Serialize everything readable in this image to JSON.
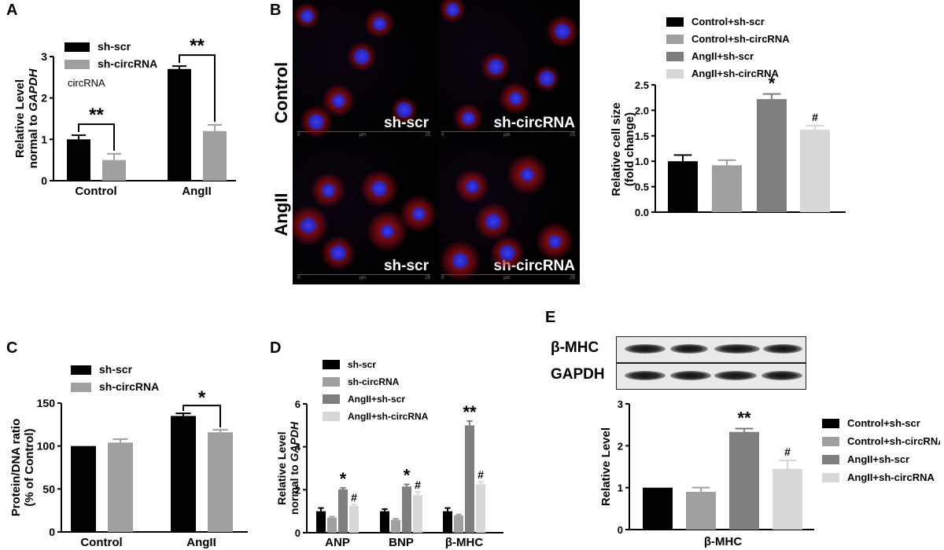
{
  "panel_letters": {
    "a": "A",
    "b": "B",
    "c": "C",
    "d": "D",
    "e": "E"
  },
  "colors": {
    "black": "#000000",
    "gray": "#a0a0a3",
    "dark_gray": "#7e7e7e",
    "light_gray": "#d7d7d7"
  },
  "micrograph": {
    "row_labels": {
      "control": "Control",
      "angii": "AngII"
    },
    "quadrant_labels": {
      "tl": "sh-scr",
      "tr": "sh-circRNA",
      "bl": "sh-scr",
      "br": "sh-circRNA"
    },
    "scale_bar": {
      "start": "0",
      "unit": "µm",
      "end": "25"
    }
  },
  "western_blot": {
    "row1_label": "β-MHC",
    "row2_label": "GAPDH"
  },
  "chart_data": [
    {
      "panel": "A",
      "type": "bar",
      "categories": [
        "Control",
        "AngII"
      ],
      "series": [
        {
          "name": "sh-scr",
          "values": [
            1.0,
            2.7
          ],
          "errors": [
            0.1,
            0.07
          ]
        },
        {
          "name": "sh-circRNA",
          "values": [
            0.5,
            1.2
          ],
          "errors": [
            0.15,
            0.15
          ]
        }
      ],
      "ylabel": "Relative Level normal to GAPDH",
      "ylim": [
        0,
        3
      ],
      "yticks": [
        0,
        1,
        2,
        3
      ],
      "legend_note": "circRNA",
      "significance": [
        "**",
        "**"
      ]
    },
    {
      "panel": "B",
      "type": "bar",
      "categories": [
        "Control+sh-scr",
        "Control+sh-circRNA",
        "AngII+sh-scr",
        "AngII+sh-circRNA"
      ],
      "values": [
        1.0,
        0.92,
        2.22,
        1.62
      ],
      "errors": [
        0.12,
        0.1,
        0.1,
        0.08
      ],
      "marks": [
        "",
        "",
        "*",
        "#"
      ],
      "ylabel": "Relative cell size (fold change)",
      "ylim": [
        0,
        2.5
      ],
      "yticks": [
        "0.0",
        "0.5",
        "1.0",
        "1.5",
        "2.0",
        "2.5"
      ]
    },
    {
      "panel": "C",
      "type": "bar",
      "categories": [
        "Control",
        "AngII"
      ],
      "series": [
        {
          "name": "sh-scr",
          "values": [
            100,
            135
          ],
          "errors": [
            0,
            3
          ]
        },
        {
          "name": "sh-circRNA",
          "values": [
            104,
            116
          ],
          "errors": [
            4,
            3
          ]
        }
      ],
      "ylabel": "Protein/DNA ratio (% of Control)",
      "ylim": [
        0,
        150
      ],
      "yticks": [
        0,
        50,
        100,
        150
      ],
      "significance": [
        "*"
      ]
    },
    {
      "panel": "D",
      "type": "bar",
      "categories": [
        "ANP",
        "BNP",
        "β-MHC"
      ],
      "series": [
        {
          "name": "sh-scr",
          "values": [
            1.0,
            1.0,
            1.0
          ],
          "errors": [
            0.15,
            0.1,
            0.15
          ]
        },
        {
          "name": "sh-circRNA",
          "values": [
            0.7,
            0.6,
            0.8
          ],
          "errors": [
            0.05,
            0.05,
            0.05
          ]
        },
        {
          "name": "AngII+sh-scr",
          "values": [
            2.02,
            2.15,
            5.0
          ],
          "errors": [
            0.07,
            0.1,
            0.2
          ]
        },
        {
          "name": "AngII+sh-circRNA",
          "values": [
            1.25,
            1.75,
            2.25
          ],
          "errors": [
            0.07,
            0.15,
            0.12
          ]
        }
      ],
      "marks": {
        "AngII+sh-scr": [
          "*",
          "*",
          "**"
        ],
        "AngII+sh-circRNA": [
          "#",
          "#",
          "#"
        ]
      },
      "ylabel": "Relative Level normal to GAPDH",
      "ylim": [
        0,
        6
      ],
      "yticks": [
        0,
        2,
        4,
        6
      ]
    },
    {
      "panel": "E",
      "type": "bar",
      "categories": [
        "Control+sh-scr",
        "Control+sh-circRNA",
        "AngII+sh-scr",
        "AngII+sh-circRNA"
      ],
      "values": [
        1.0,
        0.9,
        2.33,
        1.45
      ],
      "errors": [
        0,
        0.1,
        0.08,
        0.2
      ],
      "marks": [
        "",
        "",
        "**",
        "#"
      ],
      "xlabel": "β-MHC",
      "ylabel": "Relative Level",
      "ylim": [
        0,
        3
      ],
      "yticks": [
        0,
        1,
        2,
        3
      ]
    }
  ]
}
